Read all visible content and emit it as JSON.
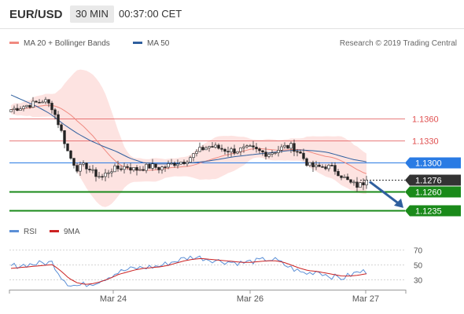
{
  "header": {
    "symbol": "EUR/USD",
    "timeframe": "30 MIN",
    "time": "00:37:00 CET"
  },
  "legend": {
    "bollinger_label": "MA 20 + Bollinger Bands",
    "ma50_label": "MA 50",
    "credit": "Research © 2019 Trading Central",
    "rsi_label": "RSI",
    "rsi_ma_label": "9MA"
  },
  "colors": {
    "bollinger": "#f08a80",
    "band_fill": "#fde0de",
    "ma50": "#2f5f9e",
    "resistance": "#e05050",
    "support": "#1a8a1a",
    "pivot": "#2a7be4",
    "last_price": "#333333",
    "arrow": "#2f5f9e",
    "rsi": "#5b8fd6",
    "rsi_ma": "#cc2222"
  },
  "chart_data": [
    {
      "type": "candlestick",
      "series": [
        {
          "name": "EUR/USD"
        },
        {
          "name": "MA 20 + Bollinger Bands"
        },
        {
          "name": "MA 50"
        }
      ],
      "ylim": [
        1.1222,
        1.1425
      ],
      "x_ticks": [
        "Mar 24",
        "Mar 26",
        "Mar 27"
      ],
      "close_path": [
        1.1372,
        1.1375,
        1.1378,
        1.1381,
        1.1385,
        1.1375,
        1.1345,
        1.131,
        1.1292,
        1.1296,
        1.1285,
        1.128,
        1.129,
        1.1292,
        1.1295,
        1.129,
        1.1293,
        1.1295,
        1.1292,
        1.1296,
        1.13,
        1.1302,
        1.131,
        1.1318,
        1.1322,
        1.132,
        1.1317,
        1.1316,
        1.1318,
        1.1319,
        1.1315,
        1.1312,
        1.1316,
        1.1321,
        1.1322,
        1.1312,
        1.1296,
        1.1293,
        1.1295,
        1.1292,
        1.1282,
        1.1272,
        1.1268,
        1.1275
      ],
      "ma50_path": [
        1.1392,
        1.1384,
        1.1376,
        1.1366,
        1.1352,
        1.134,
        1.133,
        1.1322,
        1.1315,
        1.1306,
        1.13,
        1.1298,
        1.1298,
        1.1299,
        1.13,
        1.1302,
        1.1305,
        1.1308,
        1.131,
        1.1312,
        1.1314,
        1.1316,
        1.1317,
        1.1316,
        1.1314,
        1.1309,
        1.1304,
        1.1301
      ],
      "levels": [
        {
          "name": "resistance-2",
          "value": 1.136,
          "label": "1.1360",
          "style": "resistance"
        },
        {
          "name": "resistance-1",
          "value": 1.133,
          "label": "1.1330",
          "style": "resistance"
        },
        {
          "name": "pivot",
          "value": 1.13,
          "label": "1.1300",
          "style": "pivot"
        },
        {
          "name": "last-price",
          "value": 1.1276,
          "label": "1.1276",
          "style": "last"
        },
        {
          "name": "support-1",
          "value": 1.126,
          "label": "1.1260",
          "style": "support"
        },
        {
          "name": "support-2",
          "value": 1.1235,
          "label": "1.1235",
          "style": "support"
        }
      ]
    },
    {
      "type": "line",
      "series": [
        {
          "name": "RSI",
          "values": [
            48,
            49,
            50,
            51,
            52,
            53,
            35,
            24,
            22,
            24,
            26,
            30,
            35,
            40,
            43,
            45,
            46,
            47,
            48,
            52,
            55,
            58,
            60,
            59,
            57,
            55,
            54,
            53,
            52,
            54,
            55,
            57,
            56,
            50,
            45,
            40,
            38,
            42,
            37,
            34,
            32,
            36,
            40,
            41
          ]
        },
        {
          "name": "9MA",
          "values": [
            45,
            46,
            47,
            48,
            49,
            50,
            42,
            32,
            26,
            24,
            25,
            28,
            32,
            37,
            40,
            43,
            45,
            46,
            47,
            49,
            52,
            55,
            57,
            58,
            57,
            56,
            55,
            54,
            53,
            53,
            54,
            55,
            55,
            53,
            49,
            45,
            42,
            41,
            39,
            37,
            35,
            35,
            36,
            38
          ]
        }
      ],
      "ylim": [
        18,
        78
      ],
      "y_ticks": [
        70,
        50,
        30
      ]
    }
  ]
}
